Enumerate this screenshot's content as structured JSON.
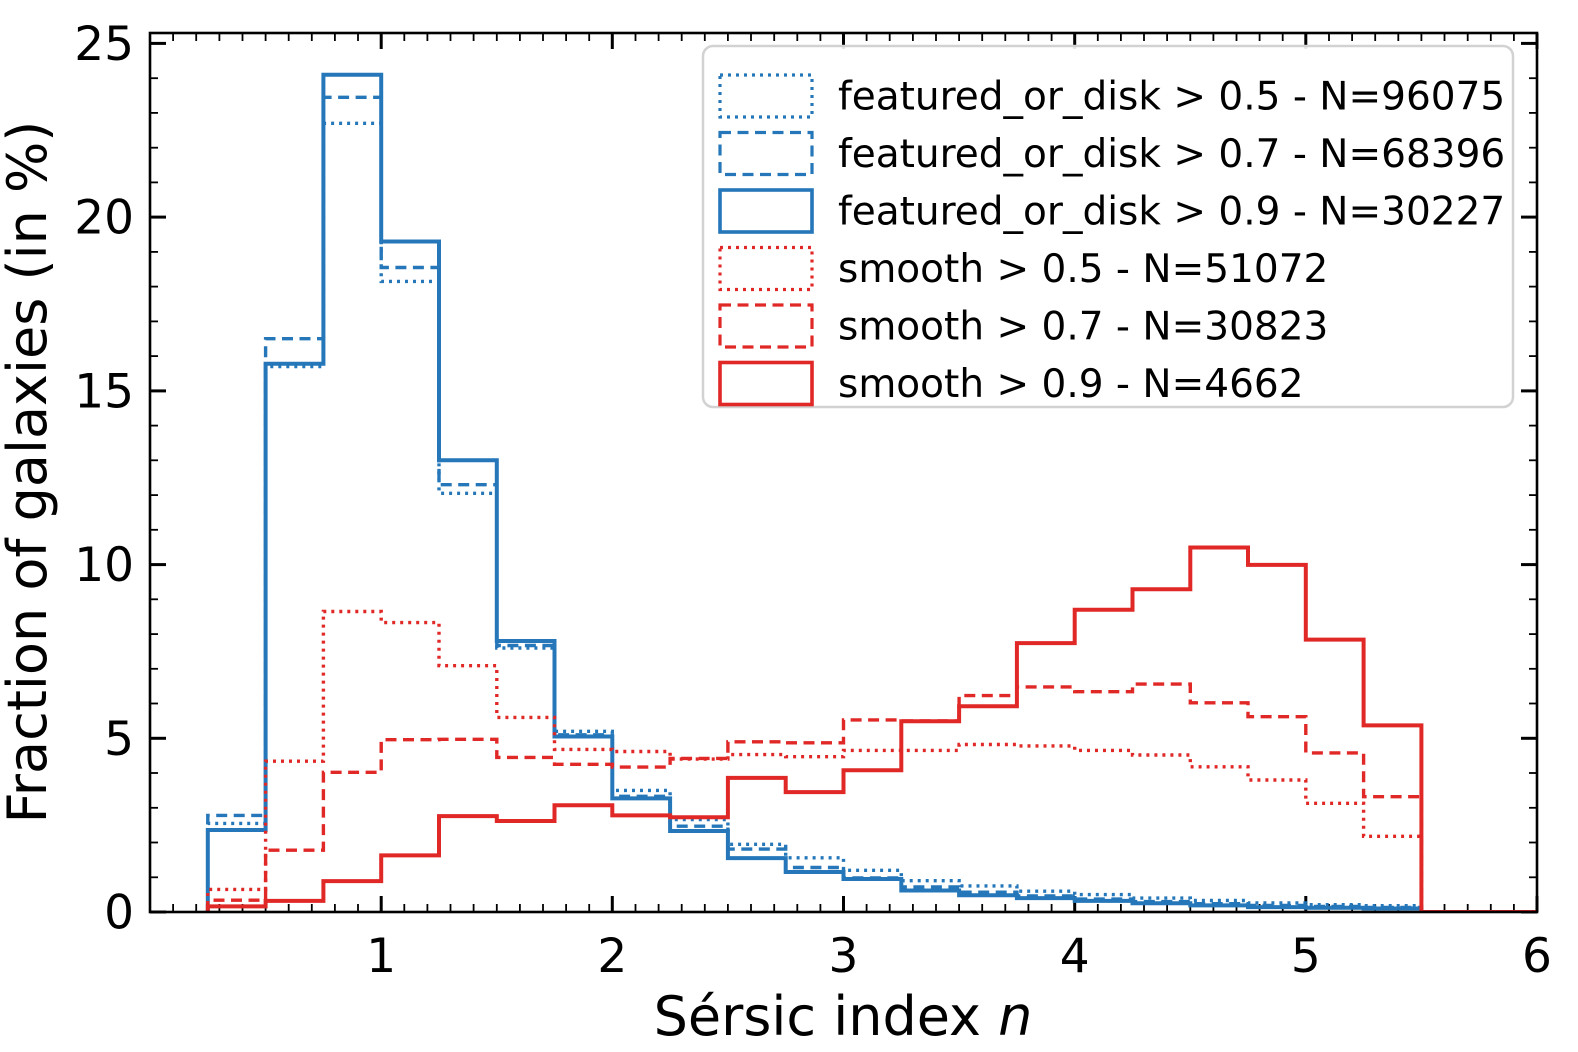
{
  "chart_data": {
    "type": "step-histogram",
    "title": "",
    "xlabel": "Sérsic index n",
    "ylabel": "Fraction of galaxies (in %)",
    "xlim": [
      0,
      6
    ],
    "ylim": [
      0,
      25.3
    ],
    "x_major_ticks": [
      1,
      2,
      3,
      4,
      5,
      6
    ],
    "y_major_ticks": [
      0,
      5,
      10,
      15,
      20,
      25
    ],
    "x_minor_step": 0.1,
    "y_minor_step": 1,
    "grid": false,
    "legend_position": "upper right",
    "bin_edges": [
      0.25,
      0.5,
      0.75,
      1.0,
      1.25,
      1.5,
      1.75,
      2.0,
      2.25,
      2.5,
      2.75,
      3.0,
      3.25,
      3.5,
      3.75,
      4.0,
      4.25,
      4.5,
      4.75,
      5.0,
      5.25,
      5.5
    ],
    "series": [
      {
        "name": "featured_or_disk > 0.5 - N=96075",
        "color": "#2577b9",
        "linestyle": "dotted",
        "values": [
          2.55,
          15.7,
          22.7,
          18.15,
          12.05,
          7.6,
          5.2,
          3.5,
          2.66,
          1.95,
          1.56,
          1.2,
          0.9,
          0.75,
          0.6,
          0.5,
          0.4,
          0.33,
          0.26,
          0.21,
          0.18
        ]
      },
      {
        "name": "featured_or_disk > 0.7 - N=68396",
        "color": "#2577b9",
        "linestyle": "dashed",
        "values": [
          2.78,
          16.5,
          23.45,
          18.55,
          12.3,
          7.67,
          5.1,
          3.33,
          2.47,
          1.81,
          1.28,
          0.98,
          0.72,
          0.57,
          0.46,
          0.37,
          0.3,
          0.24,
          0.19,
          0.16,
          0.13
        ]
      },
      {
        "name": "featured_or_disk > 0.9 - N=30227",
        "color": "#2577b9",
        "linestyle": "solid",
        "values": [
          2.36,
          15.78,
          24.1,
          19.3,
          13.0,
          7.8,
          5.05,
          3.27,
          2.33,
          1.55,
          1.15,
          0.95,
          0.62,
          0.48,
          0.4,
          0.32,
          0.25,
          0.19,
          0.14,
          0.12,
          0.1
        ]
      },
      {
        "name": "smooth > 0.5 - N=51072",
        "color": "#e02827",
        "linestyle": "dotted",
        "values": [
          0.65,
          4.34,
          8.65,
          8.33,
          7.09,
          5.6,
          4.68,
          4.62,
          4.4,
          4.53,
          4.47,
          4.65,
          4.65,
          4.82,
          4.78,
          4.65,
          4.52,
          4.18,
          3.8,
          3.13,
          2.18
        ]
      },
      {
        "name": "smooth > 0.7 - N=30823",
        "color": "#e02827",
        "linestyle": "dashed",
        "values": [
          0.34,
          1.78,
          4.02,
          4.96,
          4.97,
          4.45,
          4.25,
          4.17,
          4.42,
          4.9,
          4.87,
          5.53,
          5.5,
          6.23,
          6.48,
          6.34,
          6.56,
          6.02,
          5.62,
          4.58,
          3.32
        ]
      },
      {
        "name": "smooth > 0.9 - N=4662",
        "color": "#e02827",
        "linestyle": "solid",
        "values": [
          0.16,
          0.32,
          0.89,
          1.63,
          2.76,
          2.62,
          3.07,
          2.78,
          2.73,
          3.86,
          3.45,
          4.08,
          5.49,
          5.92,
          7.74,
          8.7,
          9.29,
          10.49,
          9.99,
          7.84,
          5.37
        ]
      }
    ]
  },
  "labels": {
    "xlabel_text": "Sérsic index ",
    "xlabel_var": "n",
    "ylabel": "Fraction of galaxies (in %)"
  },
  "colors": {
    "blue": "#2577b9",
    "red": "#e02827",
    "axis": "#000000",
    "legend_border": "#d2d2d2",
    "legend_fill": "#ffffff"
  }
}
